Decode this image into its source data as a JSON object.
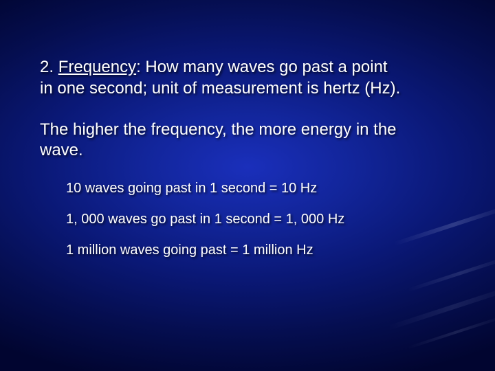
{
  "slide": {
    "background": {
      "type": "radial-gradient",
      "center_color": "#1a2fbb",
      "mid_color": "#0a1876",
      "edge_color": "#010530"
    },
    "text_color": "#ffffff",
    "shadow_color": "rgba(0,0,0,0.7)",
    "headline": {
      "prefix": "2. ",
      "term": "Frequency",
      "rest_line1": ": How many waves go past a point",
      "rest_line2": "in one second; unit of measurement is hertz (Hz).",
      "fontsize": 24
    },
    "subtext": {
      "line1": "The higher the frequency, the more energy in the",
      "line2": "wave.",
      "fontsize": 24
    },
    "bullets": [
      "10 waves going past in 1 second = 10 Hz",
      "1, 000 waves go past in 1 second = 1, 000 Hz",
      "1 million waves going past = 1 million Hz"
    ],
    "bullet_fontsize": 20
  }
}
